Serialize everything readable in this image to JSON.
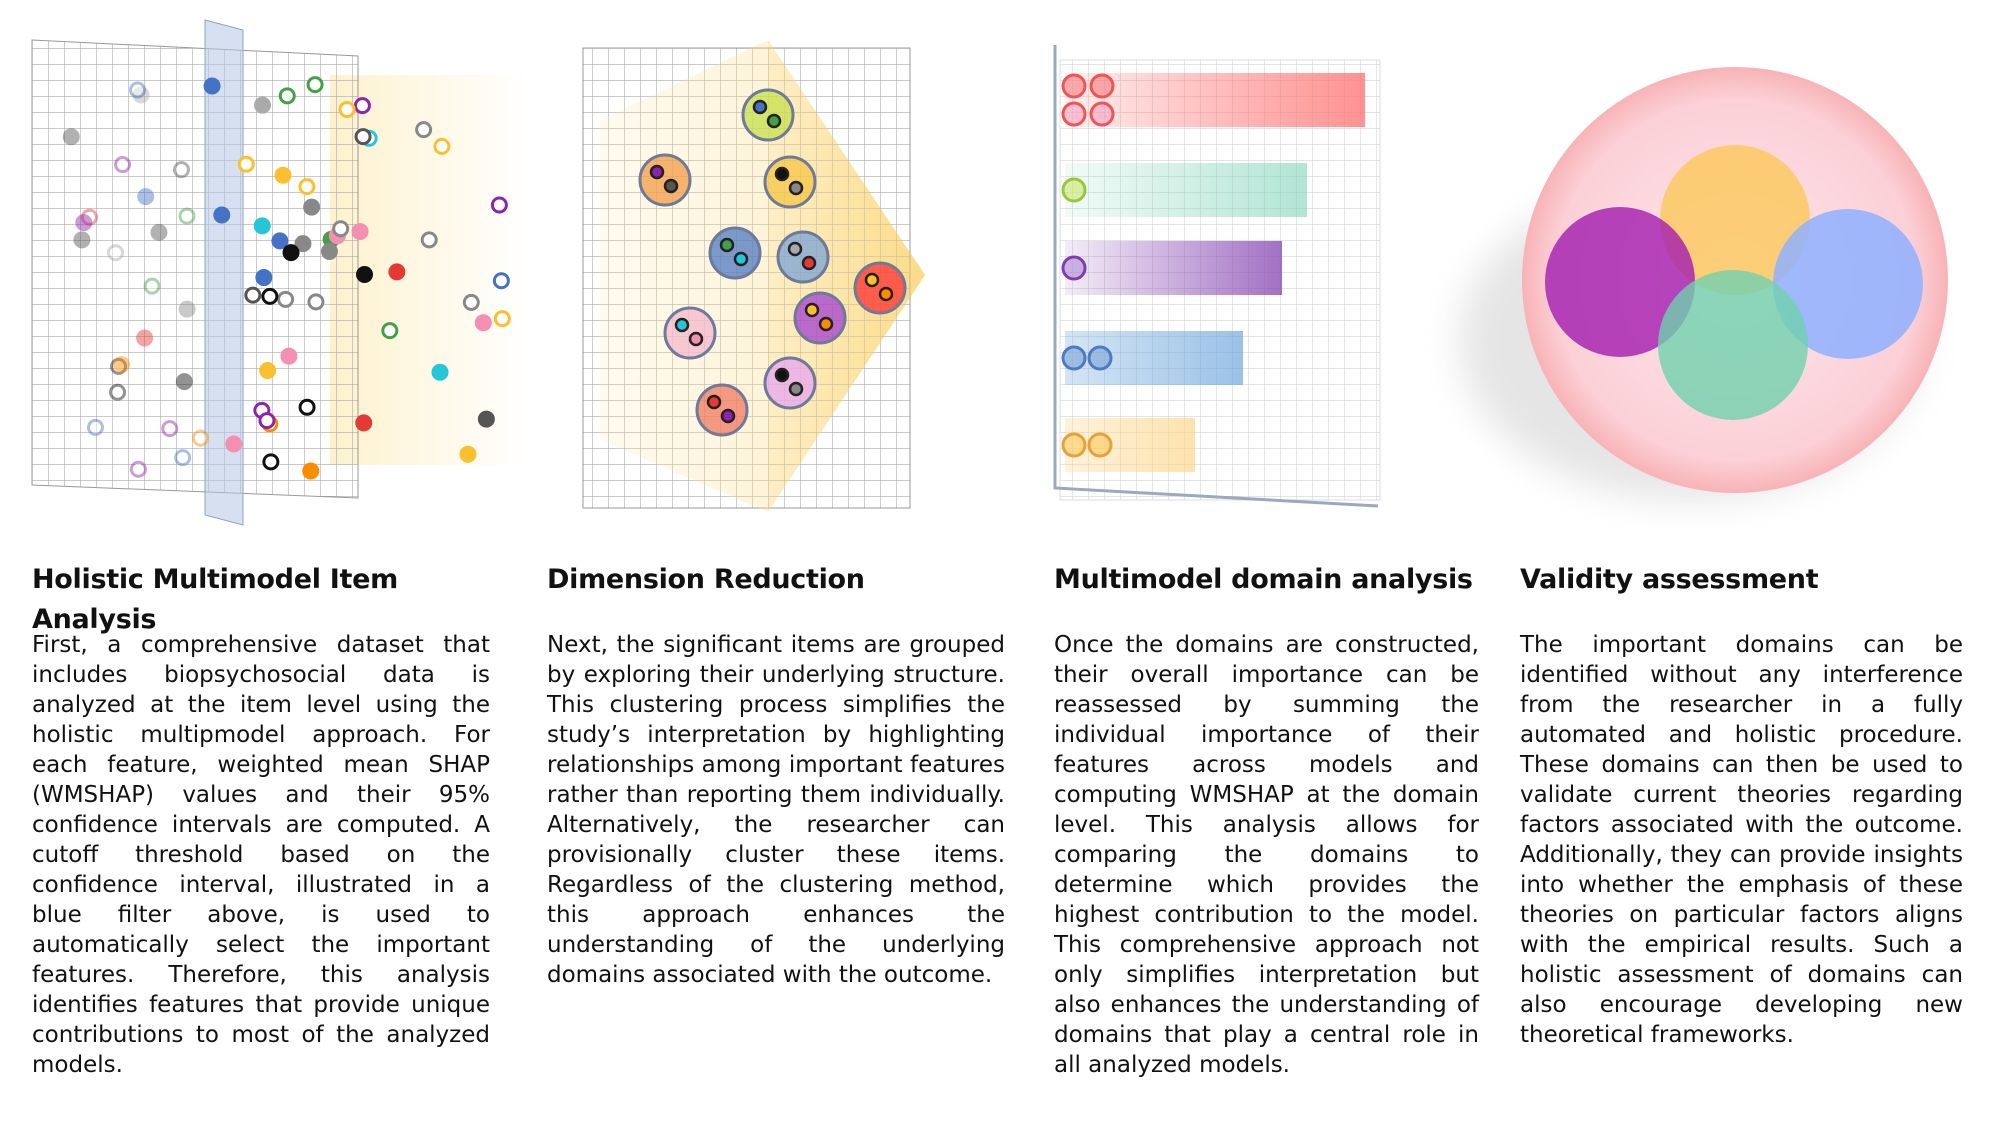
{
  "panels": [
    {
      "title": "Holistic Multimodel Item Analysis",
      "text": "First, a comprehensive dataset that includes biopsychosocial data is analyzed at the item level using the holistic multipmodel approach. For each feature, weighted mean SHAP (WMSHAP) values and their 95% confidence intervals are computed. A cutoff threshold based on the confidence interval, illustrated in a blue filter above, is used to automatically select the important features. Therefore, this analysis identifies features that provide unique contributions to most of the analyzed models."
    },
    {
      "title": "Dimension Reduction",
      "text": "Next, the significant items are grouped by exploring their underlying structure. This clustering process simplifies the study’s interpretation by highlighting relationships among important features rather than reporting them individually. Alternatively, the researcher can provisionally cluster these items. Regardless of the clustering method, this approach enhances the understanding of the underlying domains associated with the outcome."
    },
    {
      "title": "Multimodel domain analysis",
      "text": "Once the domains are constructed, their overall importance can be reassessed by summing the individual importance of their features across models and computing WMSHAP at the domain level. This analysis allows for comparing the domains to determine which provides the highest contribution to the model. This comprehensive approach not only simplifies interpretation but also enhances the understanding of domains that play a central role in all analyzed models."
    },
    {
      "title": "Validity assessment",
      "text": "The important domains can be identified without any interference from the researcher in a fully automated and holistic procedure. These domains can then be used to validate current theories regarding factors associated with the outcome. Additionally, they can provide insights into whether the emphasis of these theories on particular factors aligns with the empirical results. Such a holistic assessment of domains can also encourage developing new theoretical frameworks."
    }
  ]
}
